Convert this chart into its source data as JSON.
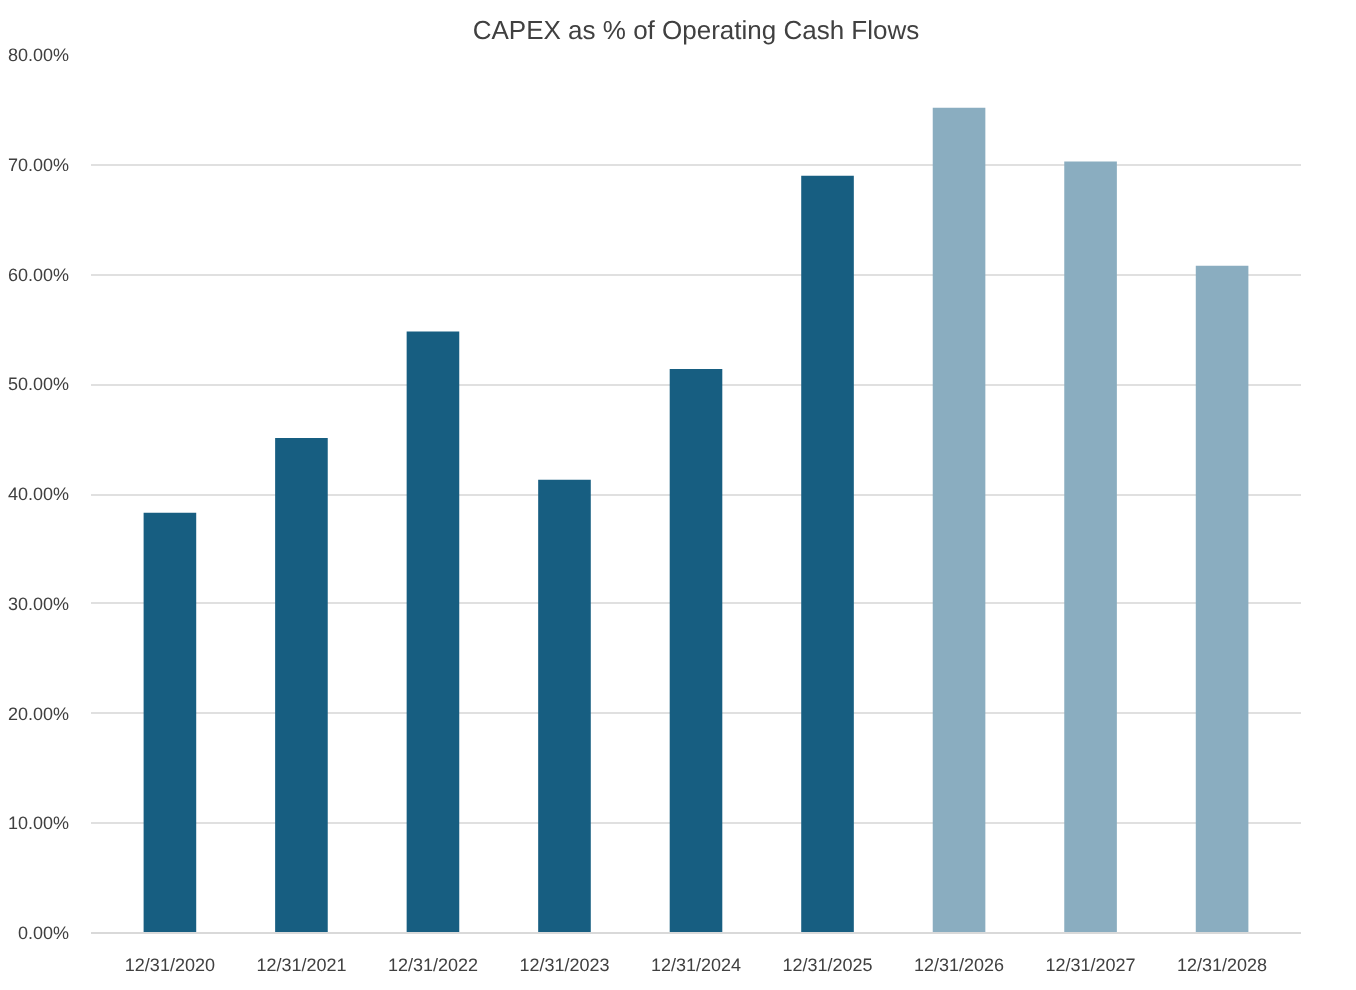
{
  "chart_data": {
    "type": "bar",
    "title": "CAPEX as % of Operating Cash Flows",
    "categories": [
      "12/31/2020",
      "12/31/2021",
      "12/31/2022",
      "12/31/2023",
      "12/31/2024",
      "12/31/2025",
      "12/31/2026",
      "12/31/2027",
      "12/31/2028"
    ],
    "values": [
      38.3,
      45.1,
      54.8,
      41.3,
      51.4,
      69.0,
      75.2,
      70.3,
      60.8
    ],
    "colors": [
      "#175e81",
      "#175e81",
      "#175e81",
      "#175e81",
      "#175e81",
      "#175e81",
      "#8aadc0",
      "#8aadc0",
      "#8aadc0"
    ],
    "ylim": [
      0,
      80
    ],
    "yticks": [
      {
        "value": 0,
        "label": "0.00%"
      },
      {
        "value": 10,
        "label": "10.00%"
      },
      {
        "value": 20,
        "label": "20.00%"
      },
      {
        "value": 30,
        "label": "30.00%"
      },
      {
        "value": 40,
        "label": "40.00%"
      },
      {
        "value": 50,
        "label": "50.00%"
      },
      {
        "value": 60,
        "label": "60.00%"
      },
      {
        "value": 70,
        "label": "70.00%"
      },
      {
        "value": 80,
        "label": "80.00%"
      }
    ],
    "grid": "y"
  }
}
